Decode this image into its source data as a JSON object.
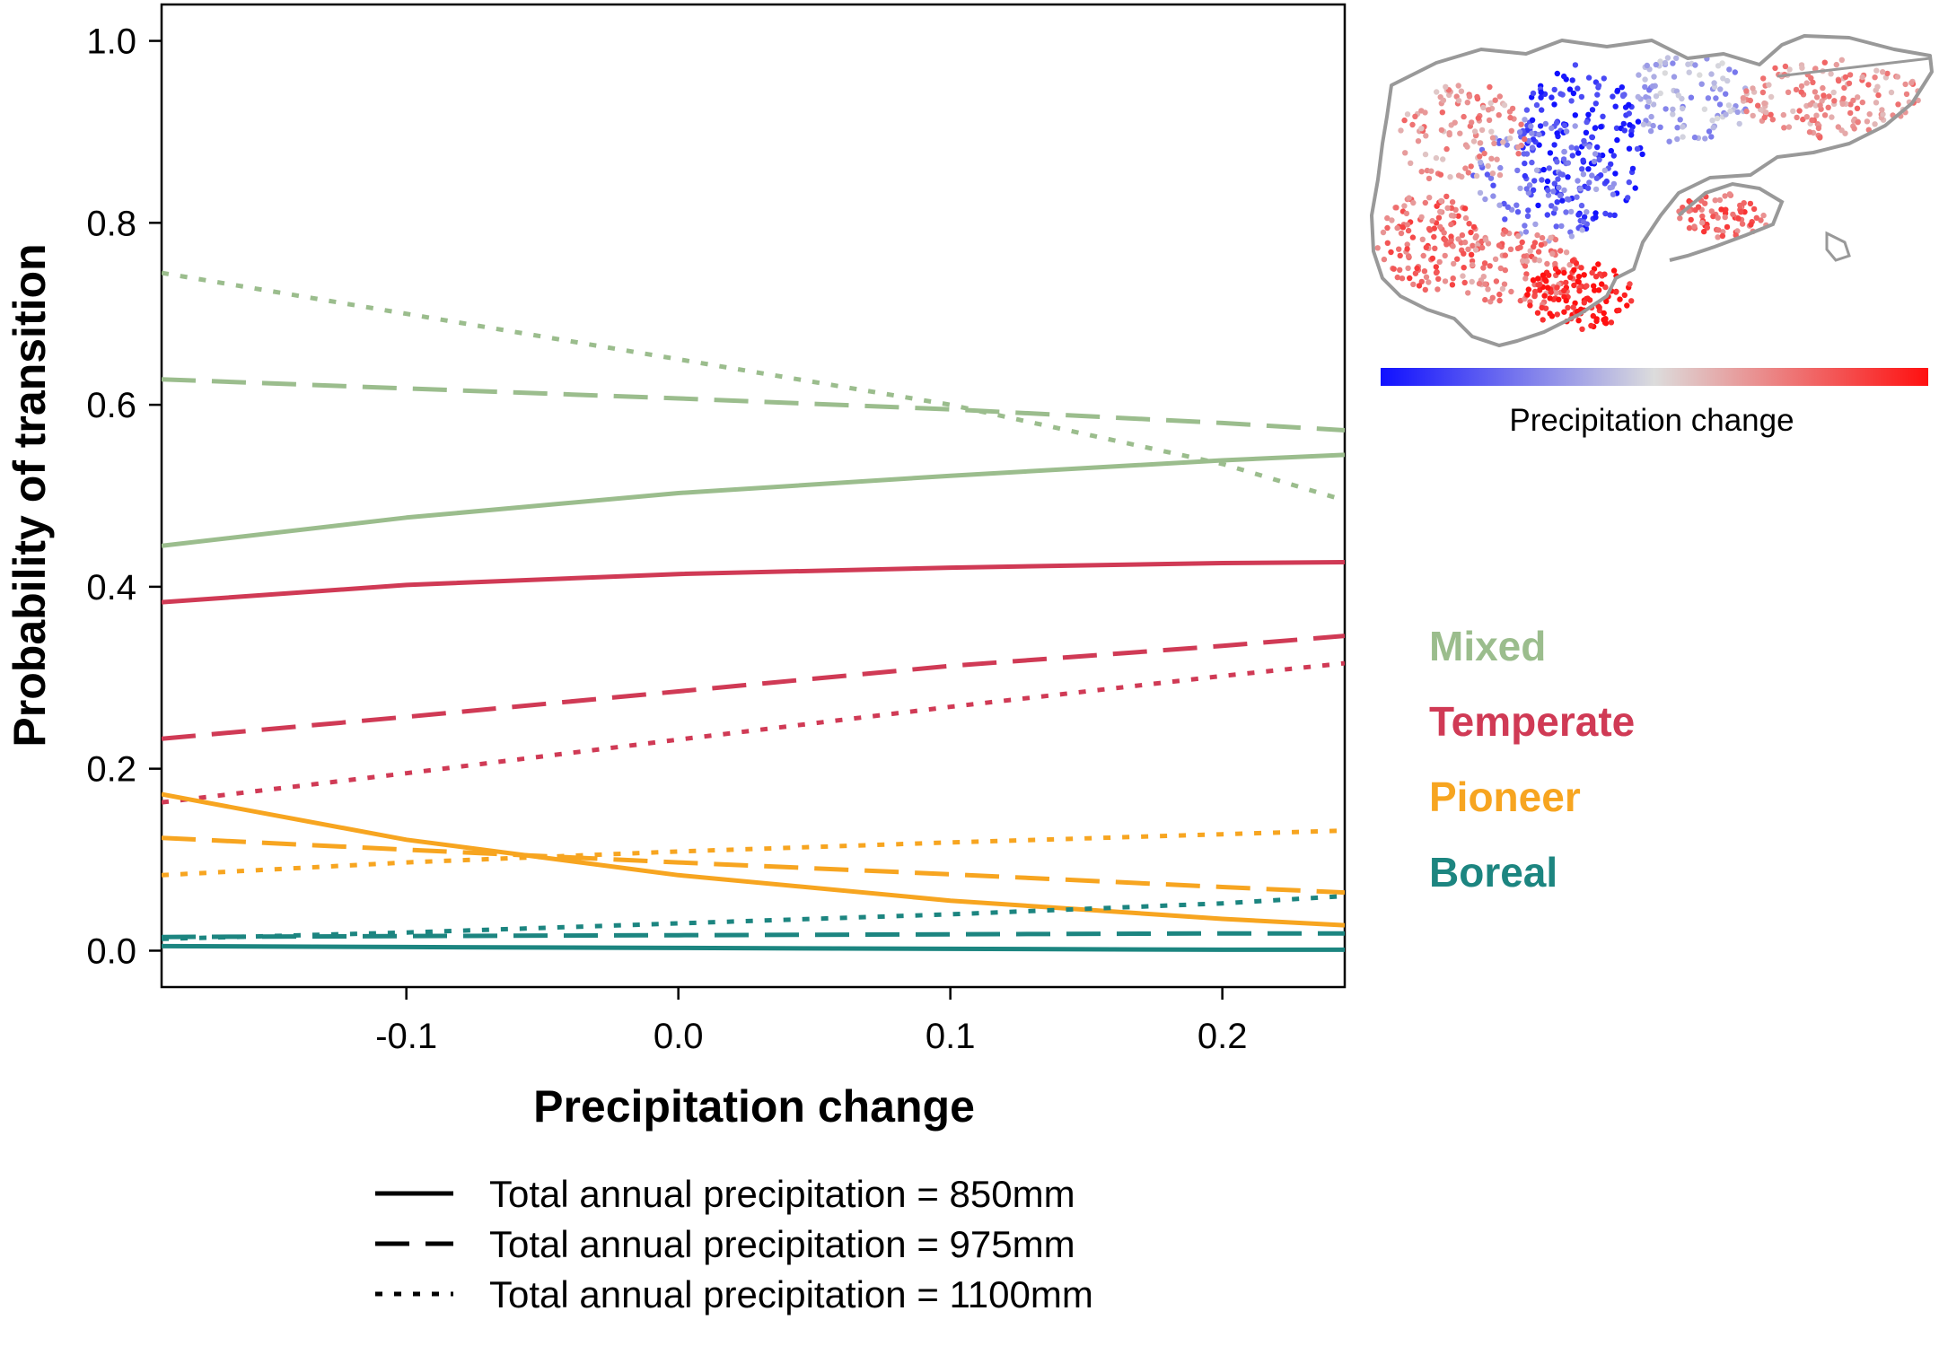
{
  "chart_data": {
    "type": "line",
    "title": "",
    "xlabel": "Precipitation change",
    "ylabel": "Probability of transition",
    "xlim": [
      -0.19,
      0.245
    ],
    "ylim": [
      -0.04,
      1.04
    ],
    "x_ticks": [
      -0.1,
      0.0,
      0.1,
      0.2
    ],
    "x_tick_labels": [
      "-0.1",
      "0.0",
      "0.1",
      "0.2"
    ],
    "y_ticks": [
      0.0,
      0.2,
      0.4,
      0.6,
      0.8,
      1.0
    ],
    "y_tick_labels": [
      "0.0",
      "0.2",
      "0.4",
      "0.6",
      "0.8",
      "1.0"
    ],
    "x": [
      -0.19,
      -0.1,
      0.0,
      0.1,
      0.2,
      0.245
    ],
    "groups": [
      {
        "label": "Mixed",
        "color": "#9bbd8d"
      },
      {
        "label": "Temperate",
        "color": "#d03a55"
      },
      {
        "label": "Pioneer",
        "color": "#f7a520"
      },
      {
        "label": "Boreal",
        "color": "#1c8580"
      }
    ],
    "line_styles": [
      {
        "style": "solid",
        "label": "Total annual precipitation = 850mm"
      },
      {
        "style": "dashed",
        "label": "Total annual precipitation = 975mm"
      },
      {
        "style": "dotted",
        "label": "Total annual precipitation = 1100mm"
      }
    ],
    "series": [
      {
        "group": "Mixed",
        "style": "solid",
        "values": [
          0.445,
          0.476,
          0.503,
          0.522,
          0.539,
          0.545
        ]
      },
      {
        "group": "Mixed",
        "style": "dashed",
        "values": [
          0.628,
          0.618,
          0.607,
          0.595,
          0.58,
          0.572
        ]
      },
      {
        "group": "Mixed",
        "style": "dotted",
        "values": [
          0.745,
          0.7,
          0.65,
          0.6,
          0.535,
          0.495
        ]
      },
      {
        "group": "Temperate",
        "style": "solid",
        "values": [
          0.383,
          0.402,
          0.414,
          0.421,
          0.426,
          0.427
        ]
      },
      {
        "group": "Temperate",
        "style": "dashed",
        "values": [
          0.233,
          0.257,
          0.285,
          0.313,
          0.335,
          0.346
        ]
      },
      {
        "group": "Temperate",
        "style": "dotted",
        "values": [
          0.163,
          0.195,
          0.232,
          0.268,
          0.302,
          0.316
        ]
      },
      {
        "group": "Pioneer",
        "style": "solid",
        "values": [
          0.172,
          0.122,
          0.083,
          0.055,
          0.035,
          0.028
        ]
      },
      {
        "group": "Pioneer",
        "style": "dashed",
        "values": [
          0.124,
          0.111,
          0.097,
          0.084,
          0.07,
          0.064
        ]
      },
      {
        "group": "Pioneer",
        "style": "dotted",
        "values": [
          0.083,
          0.097,
          0.109,
          0.119,
          0.128,
          0.132
        ]
      },
      {
        "group": "Boreal",
        "style": "solid",
        "values": [
          0.005,
          0.004,
          0.003,
          0.002,
          0.001,
          0.001
        ]
      },
      {
        "group": "Boreal",
        "style": "dashed",
        "values": [
          0.015,
          0.016,
          0.017,
          0.018,
          0.019,
          0.019
        ]
      },
      {
        "group": "Boreal",
        "style": "dotted",
        "values": [
          0.013,
          0.02,
          0.03,
          0.04,
          0.052,
          0.06
        ]
      }
    ],
    "grid": false,
    "legend_position": "bottom",
    "group_labels_position": "right"
  },
  "inset_map": {
    "caption": "Precipitation change",
    "colorbar": [
      "#1010ff",
      "#dcdcdc",
      "#ff1010"
    ],
    "outline_color": "#999999"
  }
}
